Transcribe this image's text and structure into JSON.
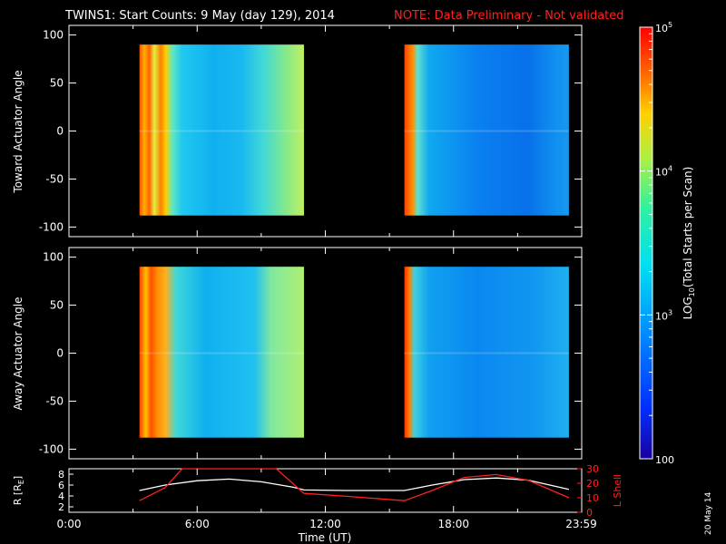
{
  "chart_data": [
    {
      "type": "heatmap",
      "title_main": "TWINS1: Start Counts:  9 May (day 129), 2014",
      "title_note": "NOTE: Data Preliminary - Not validated",
      "ylabel": "Toward Actuator Angle",
      "ylim": [
        -110,
        110
      ],
      "yticks": [
        -100,
        -50,
        0,
        50,
        100
      ],
      "xlim": [
        0,
        24
      ],
      "data_intervals_hours": [
        [
          3.3,
          11.0
        ],
        [
          15.7,
          23.4
        ]
      ],
      "angle_range": [
        -88,
        90
      ]
    },
    {
      "type": "heatmap",
      "ylabel": "Away Actuator Angle",
      "ylim": [
        -110,
        110
      ],
      "yticks": [
        -100,
        -50,
        0,
        50,
        100
      ],
      "xlim": [
        0,
        24
      ],
      "data_intervals_hours": [
        [
          3.3,
          11.0
        ],
        [
          15.7,
          23.4
        ]
      ],
      "angle_range": [
        -88,
        90
      ]
    },
    {
      "type": "line",
      "ylabel_left": "R [R",
      "ylabel_left_sub": "E",
      "ylabel_left_tail": "]",
      "ylabel_right": "L Shell",
      "ylim_left": [
        1,
        9
      ],
      "yticks_left": [
        2,
        4,
        6,
        8
      ],
      "ylim_right": [
        0,
        30
      ],
      "yticks_right": [
        0,
        10,
        20,
        30
      ],
      "xlabel": "Time (UT)",
      "xtick_labels": [
        "0:00",
        "6:00",
        "12:00",
        "18:00",
        "23:59"
      ],
      "xtick_hours": [
        0,
        6,
        12,
        18,
        23.98
      ],
      "series": [
        {
          "color": "#ffffff",
          "axis": "left",
          "x": [
            3.3,
            4.5,
            6.0,
            7.5,
            9.0,
            10.5,
            11.0,
            13.0,
            15.7,
            17.0,
            18.5,
            20.0,
            21.5,
            23.4
          ],
          "y": [
            5.0,
            6.0,
            6.8,
            7.1,
            6.6,
            5.6,
            5.1,
            5.0,
            5.0,
            6.0,
            7.0,
            7.3,
            6.9,
            5.2
          ]
        },
        {
          "color": "#ff2020",
          "axis": "right",
          "x": [
            3.3,
            4.5,
            5.3,
            5.6,
            9.4,
            9.7,
            11.0,
            13.0,
            15.7,
            17.0,
            18.5,
            20.0,
            21.5,
            23.4
          ],
          "y": [
            8,
            17,
            30,
            30,
            30,
            30,
            13,
            11,
            8,
            15,
            24,
            26,
            22,
            10
          ]
        }
      ]
    }
  ],
  "colorbar": {
    "label": "LOG",
    "label_sub": "10",
    "label_tail": "(Total Starts per Scan)",
    "ticks": [
      {
        "base": "10",
        "exp": "5",
        "value": 100000
      },
      {
        "base": "10",
        "exp": "4",
        "value": 10000
      },
      {
        "base": "10",
        "exp": "3",
        "value": 1000
      },
      {
        "base": "100",
        "exp": "",
        "value": 100
      }
    ]
  },
  "date_stamp": "20 May 14",
  "colors": {
    "background": "#000000",
    "note": "#ff2020",
    "axis": "#ffffff"
  }
}
